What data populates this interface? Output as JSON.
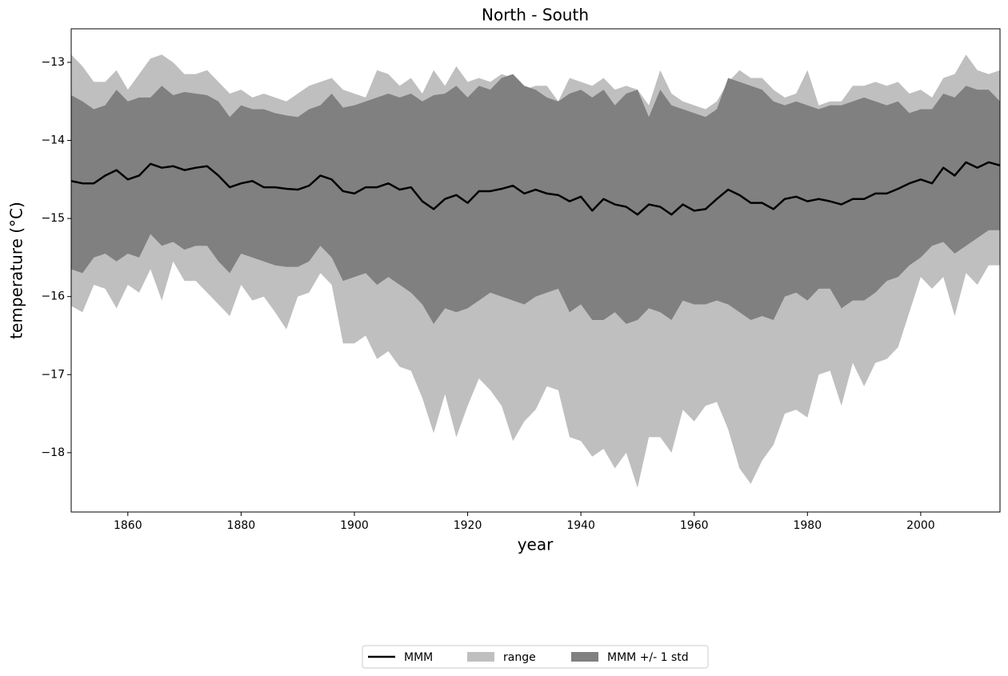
{
  "chart_data": {
    "type": "band-line",
    "title": "North - South",
    "x_label": "year",
    "y_label": "temperature ($^\\circ$C)",
    "y_label_text": "temperature (°C)",
    "x": [
      1850,
      1852,
      1854,
      1856,
      1858,
      1860,
      1862,
      1864,
      1866,
      1868,
      1870,
      1872,
      1874,
      1876,
      1878,
      1880,
      1882,
      1884,
      1886,
      1888,
      1890,
      1892,
      1894,
      1896,
      1898,
      1900,
      1902,
      1904,
      1906,
      1908,
      1910,
      1912,
      1914,
      1916,
      1918,
      1920,
      1922,
      1924,
      1926,
      1928,
      1930,
      1932,
      1934,
      1936,
      1938,
      1940,
      1942,
      1944,
      1946,
      1948,
      1950,
      1952,
      1954,
      1956,
      1958,
      1960,
      1962,
      1964,
      1966,
      1968,
      1970,
      1972,
      1974,
      1976,
      1978,
      1980,
      1982,
      1984,
      1986,
      1988,
      1990,
      1992,
      1994,
      1996,
      1998,
      2000,
      2002,
      2004,
      2006,
      2008,
      2010,
      2012,
      2014
    ],
    "series": [
      {
        "name": "MMM",
        "color": "#000000",
        "values": [
          -14.52,
          -14.55,
          -14.55,
          -14.45,
          -14.38,
          -14.5,
          -14.45,
          -14.3,
          -14.35,
          -14.33,
          -14.38,
          -14.35,
          -14.33,
          -14.45,
          -14.6,
          -14.55,
          -14.52,
          -14.6,
          -14.6,
          -14.62,
          -14.63,
          -14.58,
          -14.45,
          -14.5,
          -14.65,
          -14.68,
          -14.6,
          -14.6,
          -14.55,
          -14.63,
          -14.6,
          -14.78,
          -14.88,
          -14.75,
          -14.7,
          -14.8,
          -14.65,
          -14.65,
          -14.62,
          -14.58,
          -14.68,
          -14.63,
          -14.68,
          -14.7,
          -14.78,
          -14.72,
          -14.9,
          -14.75,
          -14.82,
          -14.85,
          -14.95,
          -14.82,
          -14.85,
          -14.95,
          -14.82,
          -14.9,
          -14.88,
          -14.75,
          -14.63,
          -14.7,
          -14.8,
          -14.8,
          -14.88,
          -14.75,
          -14.72,
          -14.78,
          -14.75,
          -14.78,
          -14.82,
          -14.75,
          -14.75,
          -14.68,
          -14.68,
          -14.62,
          -14.55,
          -14.5,
          -14.55,
          -14.35,
          -14.45,
          -14.28,
          -14.35,
          -14.28,
          -14.32
        ]
      },
      {
        "name": "range",
        "color": "#bfbfbf",
        "upper": [
          -12.9,
          -13.05,
          -13.25,
          -13.25,
          -13.1,
          -13.35,
          -13.15,
          -12.95,
          -12.9,
          -13.0,
          -13.15,
          -13.15,
          -13.1,
          -13.25,
          -13.4,
          -13.35,
          -13.45,
          -13.4,
          -13.45,
          -13.5,
          -13.4,
          -13.3,
          -13.25,
          -13.2,
          -13.35,
          -13.4,
          -13.45,
          -13.1,
          -13.15,
          -13.3,
          -13.2,
          -13.4,
          -13.1,
          -13.3,
          -13.05,
          -13.25,
          -13.2,
          -13.25,
          -13.15,
          -13.2,
          -13.35,
          -13.3,
          -13.3,
          -13.5,
          -13.2,
          -13.25,
          -13.3,
          -13.2,
          -13.35,
          -13.3,
          -13.35,
          -13.55,
          -13.1,
          -13.4,
          -13.5,
          -13.55,
          -13.6,
          -13.5,
          -13.25,
          -13.1,
          -13.2,
          -13.2,
          -13.35,
          -13.45,
          -13.4,
          -13.1,
          -13.55,
          -13.5,
          -13.5,
          -13.3,
          -13.3,
          -13.25,
          -13.3,
          -13.25,
          -13.4,
          -13.35,
          -13.45,
          -13.2,
          -13.15,
          -12.9,
          -13.1,
          -13.15,
          -13.1
        ],
        "lower": [
          -16.12,
          -16.2,
          -15.85,
          -15.9,
          -16.15,
          -15.85,
          -15.95,
          -15.65,
          -16.05,
          -15.55,
          -15.8,
          -15.8,
          -15.95,
          -16.1,
          -16.25,
          -15.85,
          -16.05,
          -16.0,
          -16.2,
          -16.42,
          -16.0,
          -15.95,
          -15.7,
          -15.85,
          -16.6,
          -16.6,
          -16.5,
          -16.8,
          -16.7,
          -16.9,
          -16.95,
          -17.3,
          -17.75,
          -17.25,
          -17.8,
          -17.4,
          -17.05,
          -17.2,
          -17.4,
          -17.85,
          -17.6,
          -17.45,
          -17.15,
          -17.2,
          -17.8,
          -17.85,
          -18.05,
          -17.95,
          -18.2,
          -18.0,
          -18.45,
          -17.8,
          -17.8,
          -18.0,
          -17.45,
          -17.6,
          -17.4,
          -17.35,
          -17.7,
          -18.2,
          -18.4,
          -18.1,
          -17.9,
          -17.5,
          -17.45,
          -17.55,
          -17.0,
          -16.95,
          -17.4,
          -16.85,
          -17.15,
          -16.85,
          -16.8,
          -16.65,
          -16.2,
          -15.75,
          -15.9,
          -15.75,
          -16.25,
          -15.7,
          -15.85,
          -15.6,
          -15.6
        ]
      },
      {
        "name": "MMM +/- 1 std",
        "color": "#808080",
        "upper": [
          -13.42,
          -13.5,
          -13.6,
          -13.55,
          -13.35,
          -13.5,
          -13.45,
          -13.45,
          -13.3,
          -13.42,
          -13.38,
          -13.4,
          -13.42,
          -13.5,
          -13.7,
          -13.55,
          -13.6,
          -13.6,
          -13.65,
          -13.68,
          -13.7,
          -13.6,
          -13.55,
          -13.4,
          -13.58,
          -13.55,
          -13.5,
          -13.45,
          -13.4,
          -13.45,
          -13.4,
          -13.5,
          -13.42,
          -13.4,
          -13.3,
          -13.45,
          -13.3,
          -13.35,
          -13.2,
          -13.15,
          -13.3,
          -13.35,
          -13.45,
          -13.5,
          -13.4,
          -13.35,
          -13.45,
          -13.35,
          -13.55,
          -13.4,
          -13.35,
          -13.7,
          -13.35,
          -13.55,
          -13.6,
          -13.65,
          -13.7,
          -13.6,
          -13.2,
          -13.25,
          -13.3,
          -13.35,
          -13.5,
          -13.55,
          -13.5,
          -13.55,
          -13.6,
          -13.55,
          -13.55,
          -13.5,
          -13.45,
          -13.5,
          -13.55,
          -13.5,
          -13.65,
          -13.6,
          -13.6,
          -13.4,
          -13.45,
          -13.3,
          -13.35,
          -13.35,
          -13.5
        ],
        "lower": [
          -15.65,
          -15.7,
          -15.5,
          -15.45,
          -15.55,
          -15.45,
          -15.5,
          -15.2,
          -15.35,
          -15.3,
          -15.4,
          -15.35,
          -15.35,
          -15.55,
          -15.7,
          -15.45,
          -15.5,
          -15.55,
          -15.6,
          -15.62,
          -15.62,
          -15.55,
          -15.35,
          -15.5,
          -15.8,
          -15.75,
          -15.7,
          -15.85,
          -15.75,
          -15.85,
          -15.95,
          -16.1,
          -16.35,
          -16.15,
          -16.2,
          -16.15,
          -16.05,
          -15.95,
          -16.0,
          -16.05,
          -16.1,
          -16.0,
          -15.95,
          -15.9,
          -16.2,
          -16.1,
          -16.3,
          -16.3,
          -16.2,
          -16.35,
          -16.3,
          -16.15,
          -16.2,
          -16.3,
          -16.05,
          -16.1,
          -16.1,
          -16.05,
          -16.1,
          -16.2,
          -16.3,
          -16.25,
          -16.3,
          -16.0,
          -15.95,
          -16.05,
          -15.9,
          -15.9,
          -16.15,
          -16.05,
          -16.05,
          -15.95,
          -15.8,
          -15.75,
          -15.6,
          -15.5,
          -15.35,
          -15.3,
          -15.45,
          -15.35,
          -15.25,
          -15.15,
          -15.15
        ]
      }
    ],
    "xlim": [
      1850,
      2014
    ],
    "ylim": [
      -18.76,
      -12.57
    ],
    "xticks": [
      1860,
      1880,
      1900,
      1920,
      1940,
      1960,
      1980,
      2000
    ],
    "yticks": [
      {
        "value": -18,
        "label": "−18"
      },
      {
        "value": -17,
        "label": "−17"
      },
      {
        "value": -16,
        "label": "−16"
      },
      {
        "value": -15,
        "label": "−15"
      },
      {
        "value": -14,
        "label": "−14"
      },
      {
        "value": -13,
        "label": "−13"
      }
    ],
    "legend": "below"
  }
}
